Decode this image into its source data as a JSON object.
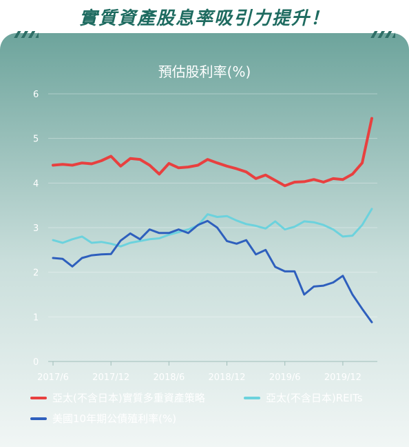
{
  "headline": "實質資產股息率吸引力提升！",
  "chart_data": {
    "type": "line",
    "title": "預估股利率(%)",
    "xlabel": "",
    "ylabel": "",
    "ylim": [
      0,
      6
    ],
    "yticks": [
      "0",
      "1",
      "2",
      "3",
      "4",
      "5",
      "6"
    ],
    "x_tick_labels": [
      "2017/6",
      "2017/12",
      "2018/6",
      "2018/12",
      "2019/6",
      "2019/12"
    ],
    "x": [
      "2017/6",
      "2017/7",
      "2017/8",
      "2017/9",
      "2017/10",
      "2017/11",
      "2017/12",
      "2018/1",
      "2018/2",
      "2018/3",
      "2018/4",
      "2018/5",
      "2018/6",
      "2018/7",
      "2018/8",
      "2018/9",
      "2018/10",
      "2018/11",
      "2018/12",
      "2019/1",
      "2019/2",
      "2019/3",
      "2019/4",
      "2019/5",
      "2019/6",
      "2019/7",
      "2019/8",
      "2019/9",
      "2019/10",
      "2019/11",
      "2019/12",
      "2020/1",
      "2020/2",
      "2020/3"
    ],
    "grid": true,
    "legend_position": "bottom",
    "series": [
      {
        "name": "亞太(不含日本)實質多重資產策略",
        "color": "#e8403f",
        "values": [
          4.4,
          4.42,
          4.4,
          4.45,
          4.43,
          4.5,
          4.6,
          4.38,
          4.55,
          4.53,
          4.4,
          4.2,
          4.44,
          4.34,
          4.36,
          4.4,
          4.53,
          4.45,
          4.38,
          4.32,
          4.25,
          4.1,
          4.18,
          4.06,
          3.94,
          4.02,
          4.03,
          4.08,
          4.02,
          4.1,
          4.08,
          4.2,
          4.45,
          5.45
        ]
      },
      {
        "name": "亞太(不含日本)REITs",
        "color": "#6cd2dd",
        "values": [
          2.72,
          2.66,
          2.74,
          2.8,
          2.66,
          2.68,
          2.64,
          2.58,
          2.66,
          2.7,
          2.74,
          2.76,
          2.84,
          2.9,
          2.96,
          3.05,
          3.3,
          3.24,
          3.26,
          3.16,
          3.08,
          3.04,
          2.98,
          3.14,
          2.96,
          3.02,
          3.14,
          3.12,
          3.06,
          2.96,
          2.8,
          2.82,
          3.06,
          3.42
        ]
      },
      {
        "name": "美國10年期公債殖利率(%)",
        "color": "#2e5fbd",
        "values": [
          2.32,
          2.3,
          2.13,
          2.32,
          2.38,
          2.4,
          2.41,
          2.71,
          2.87,
          2.74,
          2.96,
          2.88,
          2.88,
          2.96,
          2.88,
          3.06,
          3.15,
          3.0,
          2.7,
          2.64,
          2.72,
          2.4,
          2.5,
          2.12,
          2.02,
          2.02,
          1.5,
          1.68,
          1.7,
          1.77,
          1.92,
          1.5,
          1.18,
          0.88
        ]
      }
    ]
  }
}
